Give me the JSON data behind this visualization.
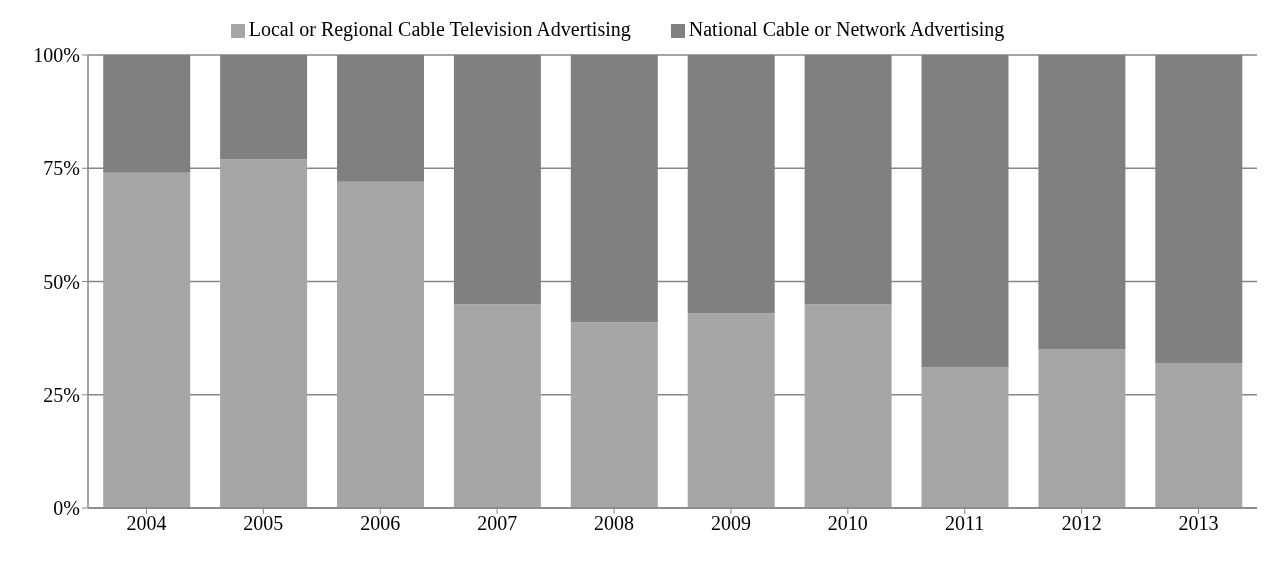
{
  "chart_data": {
    "type": "bar",
    "stacked": true,
    "categories": [
      "2004",
      "2005",
      "2006",
      "2007",
      "2008",
      "2009",
      "2010",
      "2011",
      "2012",
      "2013"
    ],
    "series": [
      {
        "name": "Local or Regional Cable Television Advertising",
        "color": "#a6a6a6",
        "values": [
          74,
          77,
          72,
          45,
          41,
          43,
          45,
          31,
          35,
          32
        ]
      },
      {
        "name": "National Cable or Network Advertising",
        "color": "#808080",
        "values": [
          26,
          23,
          28,
          55,
          59,
          57,
          55,
          69,
          65,
          68
        ]
      }
    ],
    "ylim": [
      0,
      100
    ],
    "yticks": [
      {
        "value": 0,
        "label": "0%"
      },
      {
        "value": 25,
        "label": "25%"
      },
      {
        "value": 50,
        "label": "50%"
      },
      {
        "value": 75,
        "label": "75%"
      },
      {
        "value": 100,
        "label": "100%"
      }
    ],
    "grid": "y",
    "legend": "top"
  }
}
